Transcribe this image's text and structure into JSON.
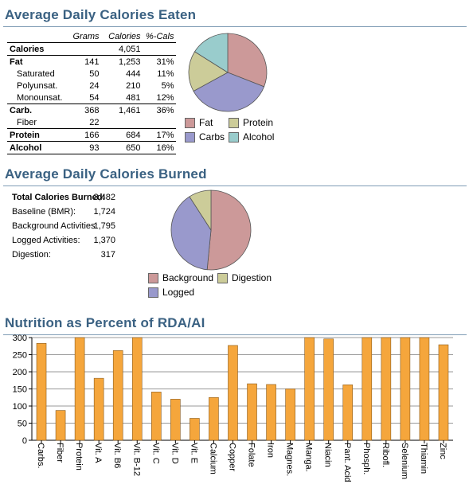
{
  "eaten": {
    "title": "Average Daily Calories Eaten",
    "headers": [
      "",
      "Grams",
      "Calories",
      "%-Cals"
    ],
    "rows": [
      {
        "label": "Calories",
        "grams": "",
        "calories": "4,051",
        "pct": "",
        "bold": true,
        "indent": false
      },
      {
        "label": "Fat",
        "grams": "141",
        "calories": "1,253",
        "pct": "31%",
        "bold": true,
        "indent": false
      },
      {
        "label": "Saturated",
        "grams": "50",
        "calories": "444",
        "pct": "11%",
        "bold": false,
        "indent": true
      },
      {
        "label": "Polyunsat.",
        "grams": "24",
        "calories": "210",
        "pct": "5%",
        "bold": false,
        "indent": true
      },
      {
        "label": "Monounsat.",
        "grams": "54",
        "calories": "481",
        "pct": "12%",
        "bold": false,
        "indent": true
      },
      {
        "label": "Carb.",
        "grams": "368",
        "calories": "1,461",
        "pct": "36%",
        "bold": true,
        "indent": false
      },
      {
        "label": "Fiber",
        "grams": "22",
        "calories": "",
        "pct": "",
        "bold": false,
        "indent": true
      },
      {
        "label": "Protein",
        "grams": "166",
        "calories": "684",
        "pct": "17%",
        "bold": true,
        "indent": false
      },
      {
        "label": "Alcohol",
        "grams": "93",
        "calories": "650",
        "pct": "16%",
        "bold": true,
        "indent": false
      }
    ],
    "legend": [
      {
        "label": "Fat",
        "color": "#cc9999"
      },
      {
        "label": "Protein",
        "color": "#cccc99"
      },
      {
        "label": "Carbs",
        "color": "#9999cc"
      },
      {
        "label": "Alcohol",
        "color": "#99cccc"
      }
    ]
  },
  "burned": {
    "title": "Average Daily Calories Burned",
    "rows": [
      {
        "label": "Total Calories Burned:",
        "value": "3,482",
        "bold": true
      },
      {
        "label": "Baseline (BMR):",
        "value": "1,724",
        "bold": false
      },
      {
        "label": "Background Activities:",
        "value": "1,795",
        "bold": false
      },
      {
        "label": "Logged Activities:",
        "value": "1,370",
        "bold": false
      },
      {
        "label": "Digestion:",
        "value": "317",
        "bold": false
      }
    ],
    "legend": [
      {
        "label": "Background",
        "color": "#cc9999"
      },
      {
        "label": "Digestion",
        "color": "#cccc99"
      },
      {
        "label": "Logged",
        "color": "#9999cc"
      }
    ]
  },
  "rda": {
    "title": "Nutrition as Percent of RDA/AI"
  },
  "chart_data": [
    {
      "type": "pie",
      "labels": [
        "Fat",
        "Carbs",
        "Protein",
        "Alcohol"
      ],
      "values": [
        1253,
        1461,
        684,
        650
      ],
      "colors": [
        "#cc9999",
        "#9999cc",
        "#cccc99",
        "#99cccc"
      ]
    },
    {
      "type": "pie",
      "labels": [
        "Background",
        "Logged",
        "Digestion"
      ],
      "values": [
        1795,
        1370,
        317
      ],
      "colors": [
        "#cc9999",
        "#9999cc",
        "#cccc99"
      ]
    },
    {
      "type": "bar",
      "categories": [
        "Carbs.",
        "Fiber",
        "Protein",
        "Vit. A",
        "Vit. B6",
        "Vit. B-12",
        "Vit. C",
        "Vit. D",
        "Vit. E",
        "Calcium",
        "Copper",
        "Folate",
        "Iron",
        "Magnes.",
        "Manga.",
        "Niacin",
        "Pant. Acid",
        "Phosph.",
        "Ribofl.",
        "Selenium",
        "Thiamin",
        "Zinc"
      ],
      "values": [
        283,
        87,
        305,
        181,
        262,
        305,
        141,
        120,
        64,
        125,
        277,
        165,
        163,
        150,
        305,
        296,
        162,
        305,
        305,
        305,
        305,
        279
      ],
      "ylim": [
        0,
        300
      ],
      "yticks": [
        0,
        50,
        100,
        150,
        200,
        250,
        300
      ],
      "bar_color": "#f5a63c",
      "grid": true
    }
  ]
}
